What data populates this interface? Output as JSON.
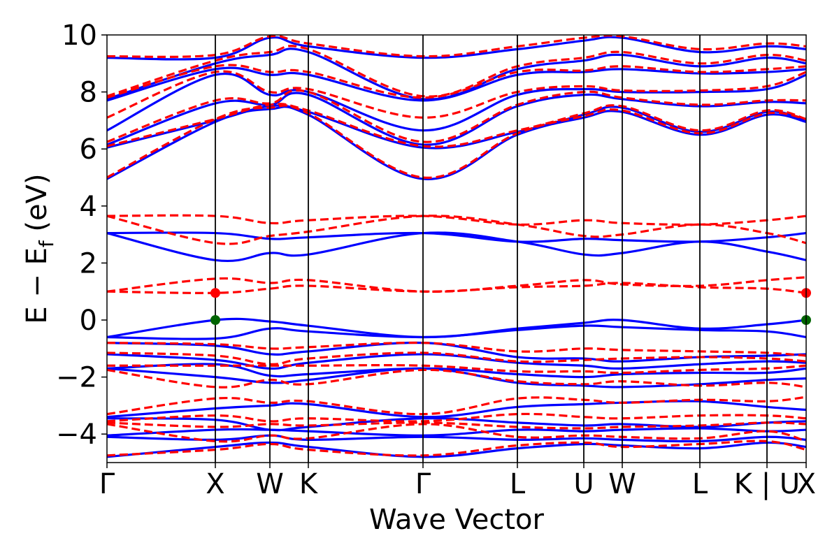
{
  "chart_data": {
    "type": "line",
    "title": "",
    "xlabel": "Wave Vector",
    "ylabel": "E − E",
    "ylabel_subscript": "f",
    "ylabel_units": " (eV)",
    "ylim": [
      -5,
      10
    ],
    "xlim": [
      0,
      1
    ],
    "yticks": [
      -4,
      -2,
      0,
      2,
      4,
      6,
      8,
      10
    ],
    "ytick_labels": [
      "−4",
      "−2",
      "0",
      "2",
      "4",
      "6",
      "8",
      "10"
    ],
    "kpoints": [
      {
        "label": "Γ",
        "x": 0.0
      },
      {
        "label": "X",
        "x": 0.155
      },
      {
        "label": "W",
        "x": 0.233
      },
      {
        "label": "K",
        "x": 0.288
      },
      {
        "label": "Γ",
        "x": 0.452
      },
      {
        "label": "L",
        "x": 0.587
      },
      {
        "label": "U",
        "x": 0.682
      },
      {
        "label": "W",
        "x": 0.737
      },
      {
        "label": "L",
        "x": 0.848
      },
      {
        "label": "K | U",
        "x": 0.944
      },
      {
        "label": "X",
        "x": 1.0
      }
    ],
    "grid": false,
    "legend": "none",
    "colors": {
      "blue_series": "#0000ff",
      "red_series": "#ff0000",
      "vbm_marker": "#006400",
      "cbm_marker": "#ff0000",
      "kpath_lines": "#000000"
    },
    "x": [
      0.0,
      0.155,
      0.233,
      0.288,
      0.452,
      0.587,
      0.682,
      0.737,
      0.848,
      0.944,
      1.0
    ],
    "series": [
      {
        "style": "solid",
        "color": "#0000ff",
        "values": [
          -4.8,
          -4.45,
          -4.3,
          -4.45,
          -4.8,
          -4.5,
          -4.35,
          -4.4,
          -4.5,
          -4.3,
          -4.45
        ]
      },
      {
        "style": "solid",
        "color": "#0000ff",
        "values": [
          -4.1,
          -4.2,
          -4.05,
          -4.2,
          -4.1,
          -4.2,
          -4.15,
          -4.2,
          -4.25,
          -4.1,
          -4.2
        ]
      },
      {
        "style": "solid",
        "color": "#0000ff",
        "values": [
          -4.05,
          -3.85,
          -3.85,
          -3.9,
          -4.05,
          -3.85,
          -3.9,
          -3.85,
          -3.8,
          -3.9,
          -3.85
        ]
      },
      {
        "style": "solid",
        "color": "#0000ff",
        "values": [
          -3.45,
          -3.5,
          -3.85,
          -3.75,
          -3.45,
          -3.6,
          -3.7,
          -3.65,
          -3.75,
          -3.6,
          -3.55
        ]
      },
      {
        "style": "solid",
        "color": "#0000ff",
        "values": [
          -3.4,
          -3.1,
          -3.0,
          -2.95,
          -3.4,
          -3.05,
          -2.95,
          -2.9,
          -2.85,
          -3.05,
          -3.15
        ]
      },
      {
        "style": "solid",
        "color": "#0000ff",
        "values": [
          -1.7,
          -2.0,
          -2.2,
          -2.1,
          -1.7,
          -2.2,
          -2.3,
          -2.35,
          -2.25,
          -2.1,
          -2.05
        ]
      },
      {
        "style": "solid",
        "color": "#0000ff",
        "values": [
          -1.7,
          -1.55,
          -1.95,
          -1.9,
          -1.7,
          -1.9,
          -2.0,
          -1.9,
          -1.85,
          -1.85,
          -1.7
        ]
      },
      {
        "style": "solid",
        "color": "#0000ff",
        "values": [
          -1.2,
          -1.4,
          -1.7,
          -1.5,
          -1.2,
          -1.5,
          -1.6,
          -1.7,
          -1.55,
          -1.45,
          -1.5
        ]
      },
      {
        "style": "solid",
        "color": "#0000ff",
        "values": [
          -0.8,
          -0.9,
          -1.2,
          -1.1,
          -0.8,
          -1.3,
          -1.35,
          -1.45,
          -1.3,
          -1.25,
          -1.2
        ]
      },
      {
        "style": "solid",
        "color": "#0000ff",
        "values": [
          -0.6,
          -0.65,
          -0.3,
          -0.4,
          -0.6,
          -0.35,
          -0.2,
          -0.25,
          -0.35,
          -0.4,
          -0.6
        ]
      },
      {
        "style": "solid",
        "color": "#0000ff",
        "values": [
          -0.6,
          0.0,
          -0.05,
          -0.2,
          -0.6,
          -0.3,
          -0.1,
          0.0,
          -0.3,
          -0.15,
          0.0
        ]
      },
      {
        "style": "solid",
        "color": "#0000ff",
        "values": [
          3.05,
          2.1,
          2.35,
          2.3,
          3.05,
          2.75,
          2.3,
          2.35,
          2.75,
          2.4,
          2.1
        ]
      },
      {
        "style": "solid",
        "color": "#0000ff",
        "values": [
          3.05,
          3.05,
          2.85,
          2.9,
          3.05,
          2.75,
          2.85,
          2.8,
          2.75,
          2.9,
          3.05
        ]
      },
      {
        "style": "solid",
        "color": "#0000ff",
        "values": [
          4.95,
          6.95,
          7.4,
          7.2,
          4.95,
          6.5,
          7.1,
          7.3,
          6.5,
          7.2,
          6.95
        ]
      },
      {
        "style": "solid",
        "color": "#0000ff",
        "values": [
          6.05,
          7.0,
          7.5,
          7.3,
          6.05,
          6.6,
          7.2,
          7.45,
          6.6,
          7.3,
          7.0
        ]
      },
      {
        "style": "solid",
        "color": "#0000ff",
        "values": [
          6.15,
          7.6,
          7.55,
          7.9,
          6.15,
          7.5,
          7.9,
          7.75,
          7.5,
          7.65,
          7.6
        ]
      },
      {
        "style": "solid",
        "color": "#0000ff",
        "values": [
          6.65,
          8.6,
          7.9,
          8.0,
          6.65,
          7.9,
          8.1,
          8.0,
          8.0,
          8.1,
          8.6
        ]
      },
      {
        "style": "solid",
        "color": "#0000ff",
        "values": [
          7.7,
          8.8,
          8.6,
          8.6,
          7.7,
          8.6,
          8.7,
          8.8,
          8.65,
          8.7,
          8.8
        ]
      },
      {
        "style": "solid",
        "color": "#0000ff",
        "values": [
          7.75,
          9.0,
          9.3,
          9.4,
          7.75,
          8.8,
          9.1,
          9.3,
          8.9,
          9.2,
          9.0
        ]
      },
      {
        "style": "solid",
        "color": "#0000ff",
        "values": [
          9.2,
          9.2,
          9.9,
          9.6,
          9.2,
          9.5,
          9.8,
          9.9,
          9.4,
          9.6,
          9.5
        ]
      },
      {
        "style": "dashed",
        "color": "#ff0000",
        "values": [
          -4.75,
          -4.55,
          -4.35,
          -4.55,
          -4.75,
          -4.4,
          -4.3,
          -4.45,
          -4.35,
          -4.25,
          -4.55
        ]
      },
      {
        "style": "dashed",
        "color": "#ff0000",
        "values": [
          -3.65,
          -4.25,
          -4.05,
          -4.15,
          -3.65,
          -4.1,
          -4.05,
          -4.1,
          -4.15,
          -3.9,
          -4.25
        ]
      },
      {
        "style": "dashed",
        "color": "#ff0000",
        "values": [
          -3.6,
          -3.75,
          -3.65,
          -3.7,
          -3.6,
          -3.75,
          -3.8,
          -3.75,
          -3.7,
          -3.6,
          -3.65
        ]
      },
      {
        "style": "dashed",
        "color": "#ff0000",
        "values": [
          -3.55,
          -3.35,
          -3.55,
          -3.45,
          -3.55,
          -3.3,
          -3.4,
          -3.45,
          -3.35,
          -3.35,
          -3.45
        ]
      },
      {
        "style": "dashed",
        "color": "#ff0000",
        "values": [
          -3.3,
          -2.75,
          -2.9,
          -2.85,
          -3.3,
          -2.75,
          -2.8,
          -2.9,
          -2.8,
          -2.85,
          -2.7
        ]
      },
      {
        "style": "dashed",
        "color": "#ff0000",
        "values": [
          -1.75,
          -2.35,
          -2.1,
          -2.25,
          -1.75,
          -2.15,
          -2.25,
          -2.15,
          -2.3,
          -2.2,
          -2.35
        ]
      },
      {
        "style": "dashed",
        "color": "#ff0000",
        "values": [
          -1.6,
          -1.6,
          -1.6,
          -1.6,
          -1.6,
          -1.8,
          -1.8,
          -1.85,
          -1.75,
          -1.7,
          -1.6
        ]
      },
      {
        "style": "dashed",
        "color": "#ff0000",
        "values": [
          -1.15,
          -1.25,
          -1.55,
          -1.35,
          -1.15,
          -1.45,
          -1.4,
          -1.35,
          -1.3,
          -1.35,
          -1.45
        ]
      },
      {
        "style": "dashed",
        "color": "#ff0000",
        "values": [
          -0.8,
          -0.85,
          -1.0,
          -0.95,
          -0.8,
          -1.1,
          -1.0,
          -1.05,
          -1.1,
          -1.15,
          -1.25
        ]
      },
      {
        "style": "dashed",
        "color": "#ff0000",
        "values": [
          1.0,
          0.95,
          1.1,
          1.2,
          1.0,
          1.15,
          1.2,
          1.3,
          1.15,
          1.1,
          0.95
        ]
      },
      {
        "style": "dashed",
        "color": "#ff0000",
        "values": [
          1.0,
          1.45,
          1.3,
          1.4,
          1.0,
          1.2,
          1.4,
          1.25,
          1.2,
          1.4,
          1.5
        ]
      },
      {
        "style": "dashed",
        "color": "#ff0000",
        "values": [
          3.65,
          2.7,
          2.95,
          3.1,
          3.65,
          3.35,
          2.95,
          3.0,
          3.35,
          3.05,
          2.7
        ]
      },
      {
        "style": "dashed",
        "color": "#ff0000",
        "values": [
          3.65,
          3.65,
          3.4,
          3.5,
          3.65,
          3.35,
          3.5,
          3.4,
          3.35,
          3.5,
          3.65
        ]
      },
      {
        "style": "dashed",
        "color": "#ff0000",
        "values": [
          5.0,
          7.05,
          7.45,
          7.25,
          5.0,
          6.55,
          7.15,
          7.35,
          6.55,
          7.25,
          7.05
        ]
      },
      {
        "style": "dashed",
        "color": "#ff0000",
        "values": [
          6.1,
          7.05,
          7.55,
          7.35,
          6.1,
          6.65,
          7.25,
          7.5,
          6.65,
          7.35,
          7.05
        ]
      },
      {
        "style": "dashed",
        "color": "#ff0000",
        "values": [
          6.25,
          7.7,
          7.6,
          8.0,
          6.25,
          7.55,
          8.0,
          7.8,
          7.55,
          7.7,
          7.7
        ]
      },
      {
        "style": "dashed",
        "color": "#ff0000",
        "values": [
          7.1,
          8.7,
          8.0,
          8.1,
          7.1,
          8.0,
          8.2,
          8.05,
          8.05,
          8.2,
          8.7
        ]
      },
      {
        "style": "dashed",
        "color": "#ff0000",
        "values": [
          7.8,
          8.9,
          8.7,
          8.7,
          7.8,
          8.7,
          8.75,
          8.9,
          8.7,
          8.8,
          8.9
        ]
      },
      {
        "style": "dashed",
        "color": "#ff0000",
        "values": [
          7.85,
          9.1,
          9.4,
          9.5,
          7.85,
          8.9,
          9.2,
          9.4,
          9.0,
          9.3,
          9.1
        ]
      },
      {
        "style": "dashed",
        "color": "#ff0000",
        "values": [
          9.25,
          9.3,
          9.95,
          9.7,
          9.25,
          9.6,
          9.9,
          9.95,
          9.5,
          9.7,
          9.6
        ]
      }
    ],
    "markers": [
      {
        "name": "vbm",
        "color": "#006400",
        "points": [
          {
            "x": 0.155,
            "y": 0.0
          },
          {
            "x": 1.0,
            "y": 0.0
          }
        ]
      },
      {
        "name": "cbm",
        "color": "#ff0000",
        "points": [
          {
            "x": 0.155,
            "y": 0.95
          },
          {
            "x": 1.0,
            "y": 0.95
          }
        ]
      }
    ]
  }
}
